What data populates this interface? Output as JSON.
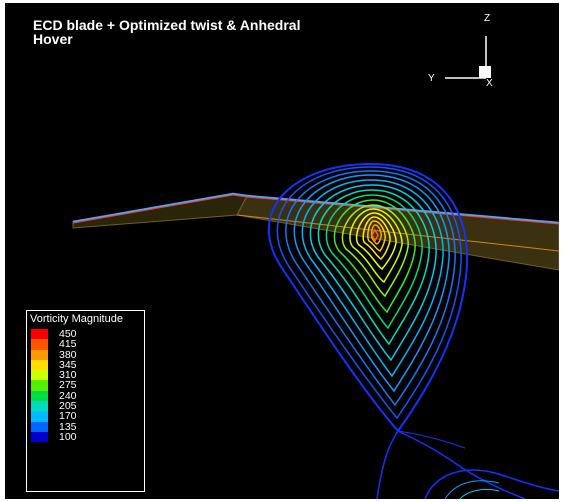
{
  "title": {
    "line1": "ECD blade + Optimized twist & Anhedral",
    "line2": "Hover"
  },
  "axes": {
    "z_label": "Z",
    "y_label": "Y",
    "x_label": "X"
  },
  "legend": {
    "title": "Vorticity Magnitude",
    "levels": [
      {
        "value": "450",
        "color": "#ff0000"
      },
      {
        "value": "415",
        "color": "#ff5500"
      },
      {
        "value": "380",
        "color": "#ff9900"
      },
      {
        "value": "345",
        "color": "#ffdd00"
      },
      {
        "value": "310",
        "color": "#ccff00"
      },
      {
        "value": "275",
        "color": "#55ee00"
      },
      {
        "value": "240",
        "color": "#00dd44"
      },
      {
        "value": "205",
        "color": "#00ddbb"
      },
      {
        "value": "170",
        "color": "#00bbff"
      },
      {
        "value": "135",
        "color": "#0066ff"
      },
      {
        "value": "100",
        "color": "#0000cc"
      }
    ]
  }
}
